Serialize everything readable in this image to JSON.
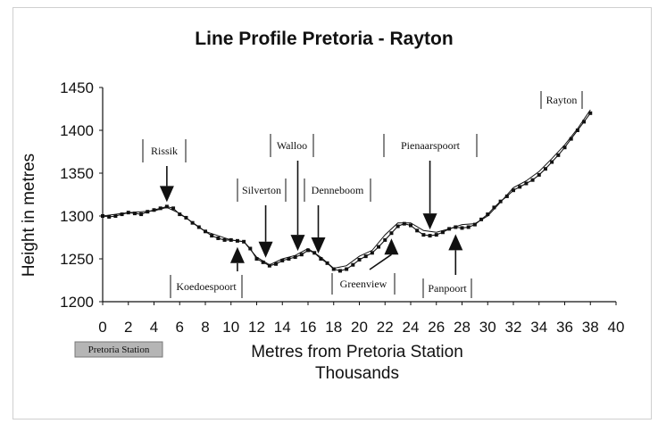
{
  "chart_data": {
    "type": "line",
    "title": "Line Profile Pretoria - Rayton",
    "xlabel": "Metres from Pretoria Station",
    "xlabel_units": "Thousands",
    "ylabel": "Height in metres",
    "xlim": [
      0,
      40
    ],
    "ylim": [
      1200,
      1450
    ],
    "x_ticks": [
      0,
      2,
      4,
      6,
      8,
      10,
      12,
      14,
      16,
      18,
      20,
      22,
      24,
      26,
      28,
      30,
      32,
      34,
      36,
      38,
      40
    ],
    "y_ticks": [
      1200,
      1250,
      1300,
      1350,
      1400,
      1450
    ],
    "grid": false,
    "legend_label": "Pretoria Station",
    "series": [
      {
        "color": "#111111",
        "marker": "square",
        "x": [
          0,
          0.5,
          1,
          1.5,
          2,
          2.5,
          3,
          3.5,
          4,
          4.5,
          5,
          5.5,
          6,
          6.5,
          7,
          7.5,
          8,
          8.5,
          9,
          9.5,
          10,
          10.5,
          11,
          11.5,
          12,
          12.5,
          13,
          13.5,
          14,
          14.5,
          15,
          15.5,
          16,
          16.5,
          17,
          17.5,
          18,
          18.5,
          19,
          19.5,
          20,
          20.5,
          21,
          21.5,
          22,
          22.5,
          23,
          23.5,
          24,
          24.5,
          25,
          25.5,
          26,
          26.5,
          27,
          27.5,
          28,
          28.5,
          29,
          29.5,
          30,
          30.5,
          31,
          31.5,
          32,
          32.5,
          33,
          33.5,
          34,
          34.5,
          35,
          35.5,
          36,
          36.5,
          37,
          37.5,
          38
        ],
        "y": [
          1300,
          1299,
          1300,
          1302,
          1304,
          1303,
          1302,
          1305,
          1307,
          1309,
          1311,
          1309,
          1302,
          1298,
          1292,
          1287,
          1282,
          1277,
          1274,
          1272,
          1272,
          1271,
          1270,
          1262,
          1250,
          1246,
          1242,
          1244,
          1248,
          1250,
          1252,
          1255,
          1260,
          1257,
          1250,
          1245,
          1238,
          1236,
          1238,
          1243,
          1249,
          1253,
          1257,
          1264,
          1272,
          1280,
          1288,
          1291,
          1289,
          1283,
          1278,
          1277,
          1278,
          1281,
          1285,
          1287,
          1286,
          1287,
          1290,
          1296,
          1302,
          1310,
          1317,
          1323,
          1330,
          1334,
          1338,
          1342,
          1348,
          1355,
          1363,
          1371,
          1380,
          1390,
          1400,
          1410,
          1420
        ]
      },
      {
        "color": "#111111",
        "marker": "none",
        "x": [
          0,
          2,
          4,
          5,
          6,
          8,
          10,
          11,
          12,
          13,
          14,
          15,
          16,
          17,
          18,
          19,
          20,
          21,
          22,
          23,
          24,
          25,
          26,
          27,
          28,
          29,
          30,
          31,
          32,
          33,
          34,
          35,
          36,
          37,
          38
        ],
        "y": [
          1300,
          1304,
          1306,
          1310,
          1303,
          1282,
          1272,
          1270,
          1252,
          1243,
          1250,
          1254,
          1262,
          1252,
          1239,
          1242,
          1253,
          1260,
          1278,
          1292,
          1292,
          1283,
          1281,
          1285,
          1290,
          1291,
          1300,
          1316,
          1333,
          1341,
          1352,
          1367,
          1383,
          1402,
          1424
        ]
      }
    ],
    "annotations": [
      {
        "label": "Rissik",
        "x": 5,
        "y": 1310
      },
      {
        "label": "Koedoespoort",
        "x": 10.5,
        "y": 1270
      },
      {
        "label": "Silverton",
        "x": 12.7,
        "y": 1245
      },
      {
        "label": "Walloo",
        "x": 15.2,
        "y": 1253
      },
      {
        "label": "Denneboom",
        "x": 16.8,
        "y": 1250
      },
      {
        "label": "Greenview",
        "x": 22.5,
        "y": 1280
      },
      {
        "label": "Pienaarspoort",
        "x": 25.5,
        "y": 1278
      },
      {
        "label": "Panpoort",
        "x": 27.5,
        "y": 1285
      },
      {
        "label": "Rayton",
        "x": 38,
        "y": 1420
      }
    ]
  }
}
